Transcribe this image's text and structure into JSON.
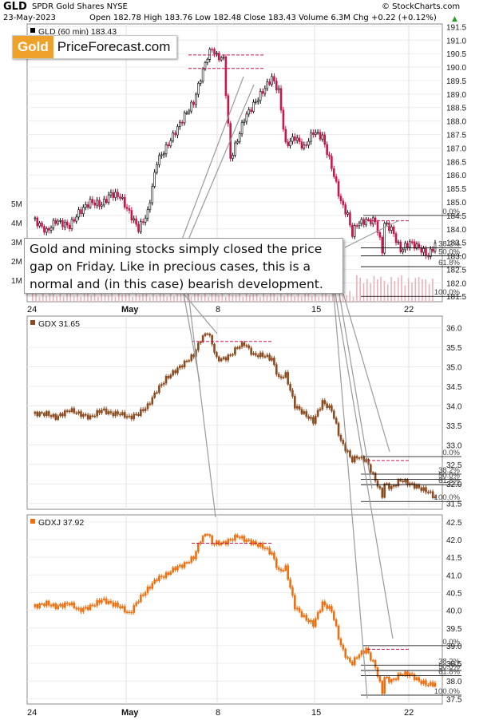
{
  "header": {
    "symbol": "GLD",
    "description": "SPDR Gold Shares NYSE",
    "brand": "© StockCharts.com",
    "date": "23-May-2023",
    "ohlc": "Open 182.78 High 183.76 Low 182.48 Close 183.43 Volume 6.3M Chg +0.22 (+0.12%)",
    "change_arrow": "▲"
  },
  "logo": {
    "gold": "Gold",
    "rest": "PriceForecast.com"
  },
  "annotation": {
    "lines": [
      "Gold and mining stocks simply closed the price",
      "gap on Friday. Like in precious cases, this is a",
      "normal and (in this case) bearish development."
    ]
  },
  "colors": {
    "up": "#000000",
    "down_gld": "#c8174d",
    "gdx": "#8b4a1e",
    "gdxj": "#ee6f0f",
    "gap_line": "#c8174d",
    "volume": "#e7b2b9",
    "fib": "#000000"
  },
  "chart_data": [
    {
      "type": "candlestick",
      "panel": "GLD",
      "legend": "GLD (60 min) 183.43",
      "ylim": [
        181.3,
        191.6
      ],
      "y_ticks": [
        181.5,
        182.0,
        182.5,
        183.0,
        183.5,
        184.0,
        184.5,
        185.0,
        185.5,
        186.0,
        186.5,
        187.0,
        187.5,
        188.0,
        188.5,
        189.0,
        189.5,
        190.0,
        190.5,
        191.0,
        191.5
      ],
      "y_tick_labels": [
        "181.5",
        "182.0",
        "182.5",
        "183.0",
        "183.5",
        "184.0",
        "184.5",
        "185.0",
        "185.5",
        "186.0",
        "186.5",
        "187.0",
        "187.5",
        "188.0",
        "188.5",
        "189.0",
        "189.5",
        "190.0",
        "190.5",
        "191.0",
        "191.5"
      ],
      "volume_labels": [
        "5M",
        "4M",
        "3M",
        "2M",
        "1M"
      ],
      "close_path": [
        [
          0,
          184.4
        ],
        [
          6,
          183.9
        ],
        [
          10,
          184.3
        ],
        [
          16,
          184.1
        ],
        [
          20,
          184.6
        ],
        [
          25,
          185.0
        ],
        [
          30,
          184.9
        ],
        [
          34,
          185.3
        ],
        [
          38,
          185.2
        ],
        [
          42,
          184.6
        ],
        [
          46,
          184.0
        ],
        [
          50,
          184.6
        ],
        [
          54,
          186.5
        ],
        [
          58,
          187.0
        ],
        [
          62,
          187.6
        ],
        [
          66,
          188.2
        ],
        [
          70,
          188.7
        ],
        [
          73,
          189.6
        ],
        [
          76,
          190.4
        ],
        [
          78,
          190.7
        ],
        [
          80,
          190.4
        ],
        [
          83,
          190.3
        ],
        [
          86,
          186.6
        ],
        [
          89,
          187.3
        ],
        [
          92,
          188.1
        ],
        [
          96,
          188.6
        ],
        [
          100,
          189.1
        ],
        [
          104,
          189.6
        ],
        [
          107,
          189.1
        ],
        [
          110,
          187.1
        ],
        [
          114,
          187.4
        ],
        [
          118,
          187.0
        ],
        [
          122,
          187.6
        ],
        [
          126,
          187.4
        ],
        [
          130,
          186.3
        ],
        [
          134,
          185.0
        ],
        [
          137,
          184.5
        ],
        [
          139,
          183.8
        ],
        [
          141,
          184.2
        ],
        [
          145,
          184.3
        ],
        [
          149,
          184.3
        ],
        [
          152,
          183.2
        ],
        [
          153,
          184.2
        ],
        [
          156,
          184.0
        ],
        [
          160,
          183.2
        ],
        [
          164,
          183.5
        ],
        [
          168,
          183.3
        ],
        [
          172,
          183.0
        ],
        [
          175,
          183.43
        ]
      ],
      "levels": [
        {
          "label": "0.0%",
          "value": 184.5
        },
        {
          "label": "38.2%",
          "value": 183.3
        },
        {
          "label": "50.0%",
          "value": 183.0
        },
        {
          "label": "61.8%",
          "value": 182.6
        },
        {
          "label": "100.0%",
          "value": 181.5
        }
      ],
      "gap_lines": [
        190.45,
        189.95,
        184.3
      ]
    },
    {
      "type": "candlestick",
      "panel": "GDX",
      "legend": "GDX 31.65",
      "ylim": [
        31.35,
        36.3
      ],
      "y_ticks": [
        31.5,
        32.0,
        32.5,
        33.0,
        33.5,
        34.0,
        34.5,
        35.0,
        35.5,
        36.0
      ],
      "y_tick_labels": [
        "31.5",
        "32.0",
        "32.5",
        "33.0",
        "33.5",
        "34.0",
        "34.5",
        "35.0",
        "35.5",
        "36.0"
      ],
      "close_path": [
        [
          0,
          33.8
        ],
        [
          6,
          33.8
        ],
        [
          10,
          33.7
        ],
        [
          16,
          33.9
        ],
        [
          20,
          33.8
        ],
        [
          25,
          33.7
        ],
        [
          30,
          33.9
        ],
        [
          34,
          33.8
        ],
        [
          38,
          33.8
        ],
        [
          42,
          33.7
        ],
        [
          46,
          33.8
        ],
        [
          50,
          34.0
        ],
        [
          54,
          34.4
        ],
        [
          58,
          34.7
        ],
        [
          62,
          34.9
        ],
        [
          66,
          35.1
        ],
        [
          70,
          35.3
        ],
        [
          73,
          35.7
        ],
        [
          76,
          35.9
        ],
        [
          78,
          35.6
        ],
        [
          80,
          35.2
        ],
        [
          83,
          35.2
        ],
        [
          86,
          35.3
        ],
        [
          89,
          35.5
        ],
        [
          92,
          35.6
        ],
        [
          96,
          35.3
        ],
        [
          100,
          35.3
        ],
        [
          104,
          35.2
        ],
        [
          107,
          34.7
        ],
        [
          110,
          34.8
        ],
        [
          114,
          34.0
        ],
        [
          118,
          33.8
        ],
        [
          122,
          33.6
        ],
        [
          126,
          34.1
        ],
        [
          130,
          33.9
        ],
        [
          134,
          33.1
        ],
        [
          137,
          32.8
        ],
        [
          139,
          32.6
        ],
        [
          141,
          32.7
        ],
        [
          145,
          32.6
        ],
        [
          149,
          32.1
        ],
        [
          152,
          31.7
        ],
        [
          153,
          32.0
        ],
        [
          156,
          31.9
        ],
        [
          160,
          32.1
        ],
        [
          164,
          32.0
        ],
        [
          168,
          31.9
        ],
        [
          172,
          31.8
        ],
        [
          175,
          31.65
        ]
      ],
      "levels": [
        {
          "label": "0.0%",
          "value": 32.7
        },
        {
          "label": "38.2%",
          "value": 32.25
        },
        {
          "label": "50.0%",
          "value": 32.12
        },
        {
          "label": "61.8%",
          "value": 31.98
        },
        {
          "label": "100.0%",
          "value": 31.55
        }
      ],
      "gap_lines": [
        35.65,
        32.6
      ]
    },
    {
      "type": "candlestick",
      "panel": "GDXJ",
      "legend": "GDXJ 37.92",
      "ylim": [
        37.35,
        42.7
      ],
      "y_ticks": [
        37.5,
        38.0,
        38.5,
        39.0,
        39.5,
        40.0,
        40.5,
        41.0,
        41.5,
        42.0,
        42.5
      ],
      "y_tick_labels": [
        "37.5",
        "38.0",
        "38.5",
        "39.0",
        "39.5",
        "40.0",
        "40.5",
        "41.0",
        "41.5",
        "42.0",
        "42.5"
      ],
      "x_tick_labels": [
        "24",
        "May",
        "8",
        "15",
        "22"
      ],
      "close_path": [
        [
          0,
          40.1
        ],
        [
          6,
          40.2
        ],
        [
          10,
          40.1
        ],
        [
          16,
          40.2
        ],
        [
          20,
          40.0
        ],
        [
          25,
          40.1
        ],
        [
          30,
          40.3
        ],
        [
          34,
          40.2
        ],
        [
          38,
          40.1
        ],
        [
          42,
          39.9
        ],
        [
          46,
          40.3
        ],
        [
          50,
          40.6
        ],
        [
          54,
          40.9
        ],
        [
          58,
          41.0
        ],
        [
          62,
          41.2
        ],
        [
          66,
          41.3
        ],
        [
          70,
          41.5
        ],
        [
          73,
          42.0
        ],
        [
          76,
          42.2
        ],
        [
          78,
          41.9
        ],
        [
          80,
          41.9
        ],
        [
          83,
          41.9
        ],
        [
          86,
          42.0
        ],
        [
          89,
          42.1
        ],
        [
          92,
          42.0
        ],
        [
          96,
          41.9
        ],
        [
          100,
          41.8
        ],
        [
          104,
          41.6
        ],
        [
          107,
          41.1
        ],
        [
          110,
          41.2
        ],
        [
          114,
          40.1
        ],
        [
          118,
          39.8
        ],
        [
          122,
          39.6
        ],
        [
          126,
          40.2
        ],
        [
          130,
          40.0
        ],
        [
          134,
          39.0
        ],
        [
          137,
          38.6
        ],
        [
          139,
          38.5
        ],
        [
          141,
          38.7
        ],
        [
          145,
          38.9
        ],
        [
          149,
          38.4
        ],
        [
          152,
          37.7
        ],
        [
          153,
          38.1
        ],
        [
          156,
          38.0
        ],
        [
          160,
          38.2
        ],
        [
          164,
          38.2
        ],
        [
          168,
          38.0
        ],
        [
          172,
          37.9
        ],
        [
          175,
          37.92
        ]
      ],
      "levels": [
        {
          "label": "0.0%",
          "value": 39.0
        },
        {
          "label": "38.2%",
          "value": 38.45
        },
        {
          "label": "50.0%",
          "value": 38.3
        },
        {
          "label": "61.8%",
          "value": 38.15
        },
        {
          "label": "100.0%",
          "value": 37.6
        }
      ],
      "gap_lines": [
        41.9,
        38.9
      ]
    }
  ]
}
